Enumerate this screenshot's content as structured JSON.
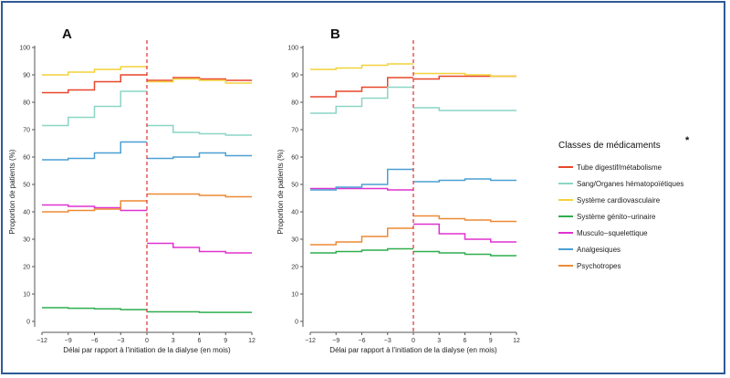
{
  "chart_data": [
    {
      "type": "line",
      "panel": "A",
      "xlabel": "Délai par rapport à l'initiation de la dialyse (en mois)",
      "ylabel": "Proportion de patients (%)",
      "xlim": [
        -12,
        12
      ],
      "ylim": [
        0,
        100
      ],
      "x_ticks": [
        "−12",
        "−9",
        "−6",
        "−3",
        "0",
        "3",
        "6",
        "9",
        "12"
      ],
      "y_ticks": [
        "0",
        "10",
        "20",
        "30",
        "40",
        "50",
        "60",
        "70",
        "80",
        "90",
        "100"
      ],
      "x": [
        -12,
        -9,
        -6,
        -3,
        0,
        3,
        6,
        9,
        12
      ],
      "vline_x": 0,
      "series": [
        {
          "name": "Tube digestif/métabolisme",
          "values": [
            83.5,
            84.5,
            87.5,
            90,
            88,
            89,
            88.5,
            88,
            88
          ]
        },
        {
          "name": "Sang/Organes hématopoïétiques",
          "values": [
            71.5,
            74.5,
            78.5,
            84,
            71.5,
            69,
            68.5,
            68,
            68
          ]
        },
        {
          "name": "Système cardiovasculaire",
          "values": [
            90,
            91,
            92,
            93,
            87.5,
            88.5,
            88,
            87,
            87
          ]
        },
        {
          "name": "Système génito−urinaire",
          "values": [
            5,
            4.8,
            4.6,
            4.3,
            3.5,
            3.5,
            3.3,
            3.3,
            3.3
          ]
        },
        {
          "name": "Musculo−squelettique",
          "values": [
            42.5,
            42,
            41.5,
            40.5,
            28.5,
            27,
            25.5,
            25,
            25
          ]
        },
        {
          "name": "Analgesiques",
          "values": [
            59,
            59.5,
            61.5,
            65.5,
            59.5,
            60,
            61.5,
            60.5,
            60.5
          ]
        },
        {
          "name": "Psychotropes",
          "values": [
            40,
            40.5,
            41,
            44,
            46.5,
            46.5,
            46,
            45.5,
            45.5
          ]
        }
      ]
    },
    {
      "type": "line",
      "panel": "B",
      "xlabel": "Délai par rapport à l'initiation de la dialyse (en mois)",
      "ylabel": "Proportion de patients (%)",
      "xlim": [
        -12,
        12
      ],
      "ylim": [
        0,
        100
      ],
      "x_ticks": [
        "−12",
        "−9",
        "−6",
        "−3",
        "0",
        "3",
        "6",
        "9",
        "12"
      ],
      "y_ticks": [
        "0",
        "10",
        "20",
        "30",
        "40",
        "50",
        "60",
        "70",
        "80",
        "90",
        "100"
      ],
      "x": [
        -12,
        -9,
        -6,
        -3,
        0,
        3,
        6,
        9,
        12
      ],
      "vline_x": 0,
      "series": [
        {
          "name": "Tube digestif/métabolisme",
          "values": [
            82,
            84,
            85.5,
            89,
            88.5,
            89.5,
            89.5,
            89.5,
            89.5
          ]
        },
        {
          "name": "Sang/Organes hématopoïétiques",
          "values": [
            76,
            78.5,
            81.5,
            85.5,
            78,
            77,
            77,
            77,
            77
          ]
        },
        {
          "name": "Système cardiovasculaire",
          "values": [
            92,
            92.5,
            93.5,
            94,
            90.5,
            90.5,
            90,
            89.5,
            89.5
          ]
        },
        {
          "name": "Système génito−urinaire",
          "values": [
            25,
            25.5,
            26,
            26.5,
            25.5,
            25,
            24.5,
            24,
            24
          ]
        },
        {
          "name": "Musculo−squelettique",
          "values": [
            48.5,
            48.5,
            48.5,
            48,
            35.5,
            32,
            30,
            29,
            29
          ]
        },
        {
          "name": "Analgesiques",
          "values": [
            48,
            49,
            50,
            55.5,
            51,
            51.5,
            52,
            51.5,
            51.5
          ]
        },
        {
          "name": "Psychotropes",
          "values": [
            28,
            29,
            31,
            34,
            38.5,
            37.5,
            37,
            36.5,
            36.5
          ]
        }
      ]
    }
  ],
  "legend": {
    "title": "Classes de médicaments",
    "marker": "*",
    "items": [
      {
        "label": "Tube digestif/métabolisme",
        "color": "#e8472a"
      },
      {
        "label": "Sang/Organes hématopoïétiques",
        "color": "#8ad6c6"
      },
      {
        "label": "Système cardiovasculaire",
        "color": "#f2d23a"
      },
      {
        "label": "Système génito−urinaire",
        "color": "#2fae4e"
      },
      {
        "label": "Musculo−squelettique",
        "color": "#e032d0"
      },
      {
        "label": "Analgesiques",
        "color": "#4a9fd4"
      },
      {
        "label": "Psychotropes",
        "color": "#ee8a35"
      }
    ]
  },
  "colors": {
    "frame": "#2f5a96",
    "vline": "#e03030",
    "axis": "#555555"
  }
}
